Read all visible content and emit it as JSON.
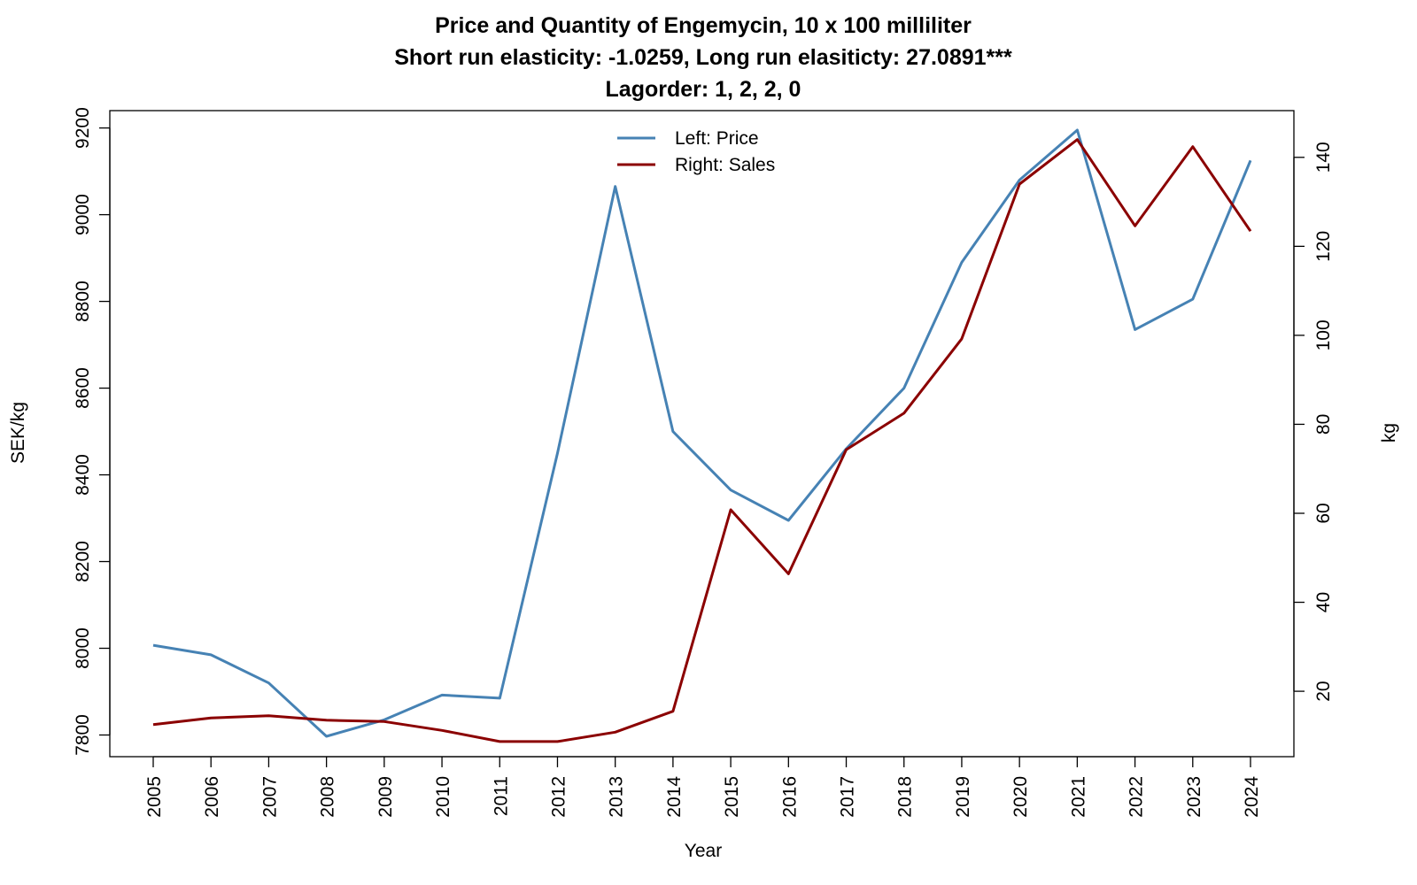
{
  "chart_data": {
    "type": "line",
    "title": "Price and Quantity of Engemycin, 10 x 100 milliliter",
    "subtitle": "Short run elasticity: -1.0259,   Long run elasiticty: 27.0891***",
    "subtitle2": "Lagorder: 1, 2, 2, 0",
    "xlabel": "Year",
    "ylabel_left": "SEK/kg",
    "ylabel_right": "kg",
    "x": [
      2005,
      2006,
      2007,
      2008,
      2009,
      2010,
      2011,
      2012,
      2013,
      2014,
      2015,
      2016,
      2017,
      2018,
      2019,
      2020,
      2021,
      2022,
      2023,
      2024
    ],
    "x_tick_labels": [
      "2005",
      "2006",
      "2007",
      "2008",
      "2009",
      "2010",
      "2011",
      "2012",
      "2013",
      "2014",
      "2015",
      "2016",
      "2017",
      "2018",
      "2019",
      "2020",
      "2021",
      "2022",
      "2023",
      "2024"
    ],
    "left_axis": {
      "ylim": [
        7750,
        9240
      ],
      "ticks": [
        7800,
        8000,
        8200,
        8400,
        8600,
        8800,
        9000,
        9200
      ]
    },
    "right_axis": {
      "ylim": [
        5.3,
        150.5
      ],
      "ticks": [
        20,
        40,
        60,
        80,
        100,
        120,
        140
      ]
    },
    "series": [
      {
        "name": "Left: Price",
        "axis": "left",
        "color": "#4682B4",
        "values": [
          8007,
          7985,
          7920,
          7797,
          7835,
          7892,
          7885,
          8450,
          9065,
          8500,
          8365,
          8295,
          8460,
          8600,
          8890,
          9080,
          9195,
          8735,
          8805,
          9125
        ]
      },
      {
        "name": "Right: Sales",
        "axis": "right",
        "color": "#8B0000",
        "values": [
          12.5,
          14.0,
          14.5,
          13.5,
          13.2,
          11.2,
          8.7,
          8.7,
          10.8,
          15.5,
          60.8,
          46.4,
          74.3,
          82.5,
          99.2,
          134.0,
          144.0,
          124.6,
          142.4,
          123.4
        ]
      }
    ],
    "legend_position": "top-center",
    "grid": false
  }
}
